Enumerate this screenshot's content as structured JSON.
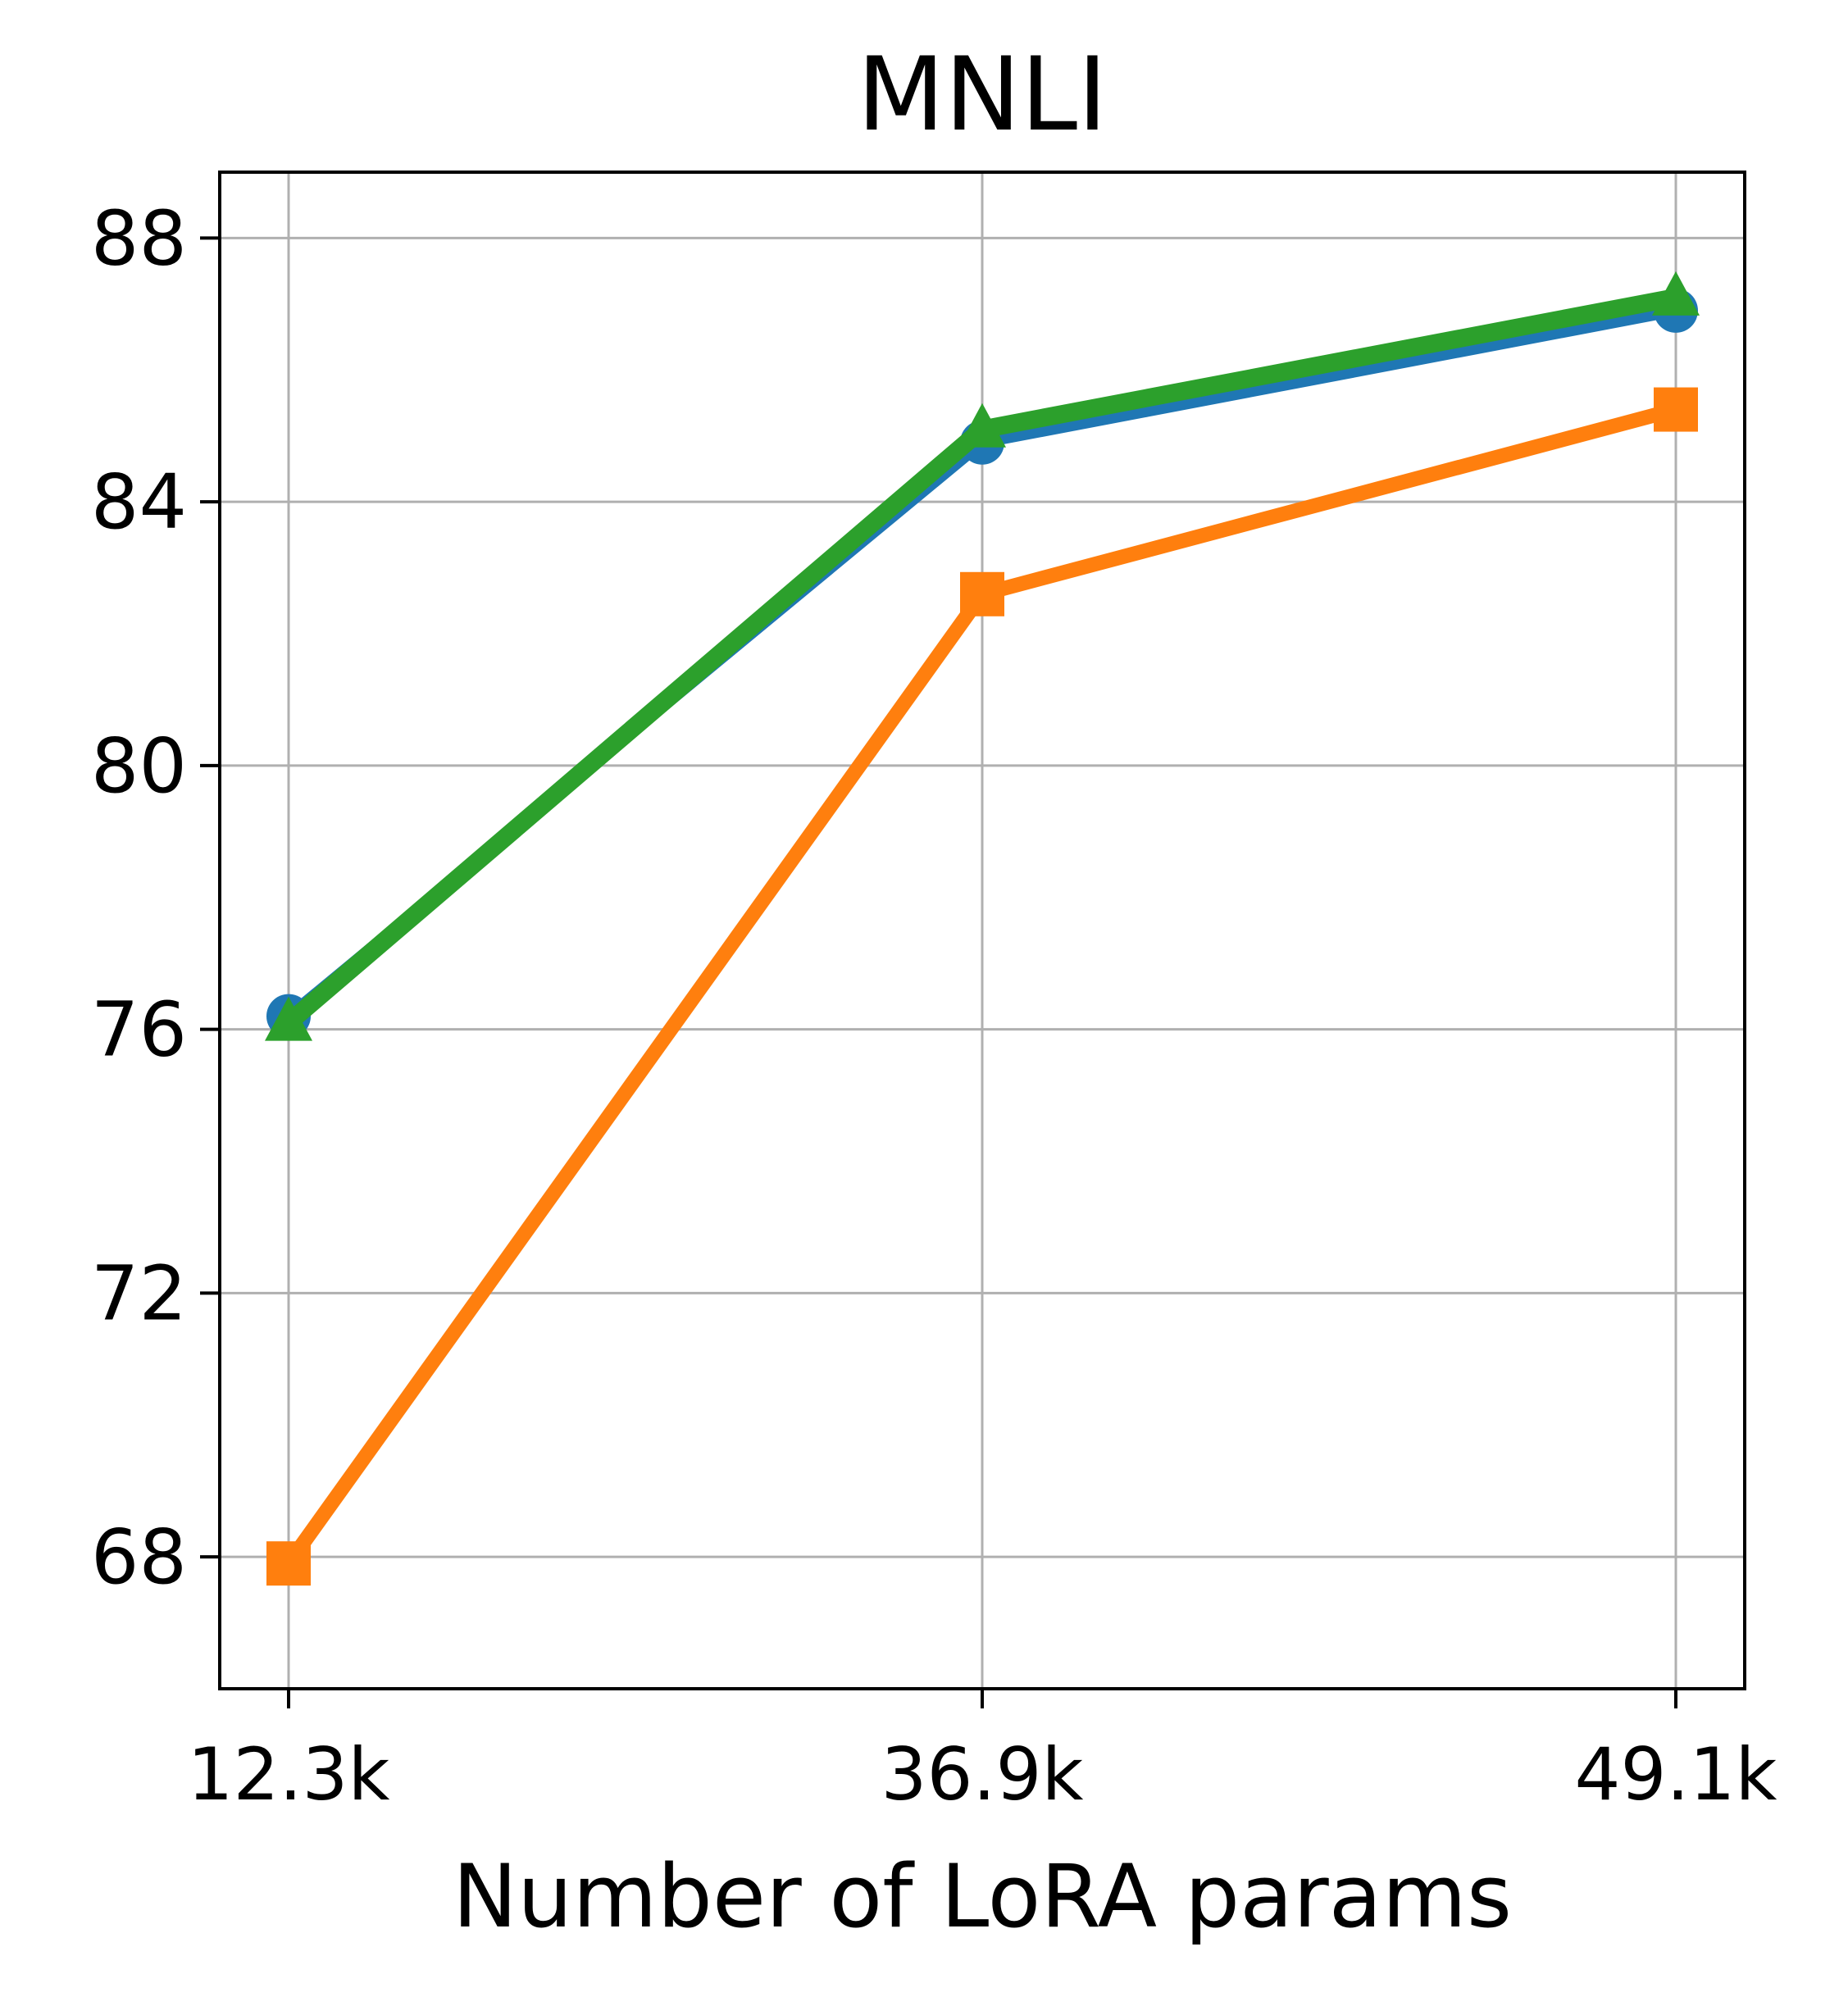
{
  "chart_data": {
    "type": "line",
    "title": "MNLI",
    "xlabel": "Number of LoRA params",
    "ylabel": "",
    "categories": [
      "12.3k",
      "36.9k",
      "49.1k"
    ],
    "yticks": [
      68,
      72,
      76,
      80,
      84,
      88
    ],
    "ylim": [
      66.0,
      89.0
    ],
    "grid": true,
    "legend": null,
    "series": [
      {
        "color": "#1f77b4",
        "marker": "circle",
        "values": [
          76.2,
          84.9,
          86.9
        ]
      },
      {
        "color": "#ff7f0e",
        "marker": "square",
        "values": [
          67.9,
          82.6,
          85.4
        ]
      },
      {
        "color": "#2ca02c",
        "marker": "triangle",
        "values": [
          76.1,
          85.1,
          87.1
        ]
      }
    ]
  }
}
